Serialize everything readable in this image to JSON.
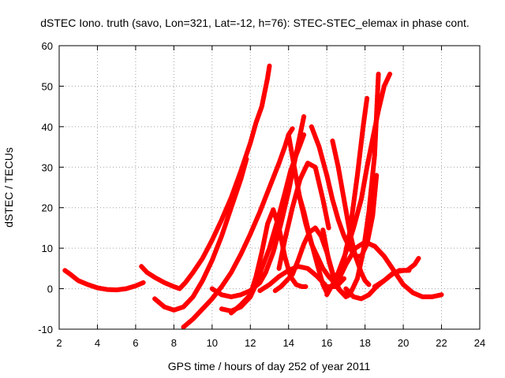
{
  "chart_data": {
    "type": "scatter",
    "title": "dSTEC Iono. truth (savo, Lon=321, Lat=-12, h=76): STEC-STEC_elemax in phase cont.",
    "xlabel": "GPS time / hours of day 252 of year 2011",
    "ylabel": "dSTEC  / TECUs",
    "xlim": [
      2,
      24
    ],
    "ylim": [
      -10,
      60
    ],
    "xticks": [
      2,
      4,
      6,
      8,
      10,
      12,
      14,
      16,
      18,
      20,
      22,
      24
    ],
    "yticks": [
      -10,
      0,
      10,
      20,
      30,
      40,
      50,
      60
    ],
    "grid": true,
    "marker": "plus",
    "color": "#ff0000",
    "series": [
      {
        "x": [
          2.3,
          2.6,
          3.0,
          3.5,
          4.0,
          4.5,
          5.0,
          5.5,
          6.0,
          6.4
        ],
        "y": [
          4.5,
          3.5,
          2.0,
          1.0,
          0.2,
          -0.2,
          -0.3,
          0.0,
          0.7,
          1.5
        ]
      },
      {
        "x": [
          6.3,
          6.6,
          7.0,
          7.5,
          8.0,
          8.3,
          8.6,
          9.0,
          9.5,
          10.0,
          10.5,
          11.0,
          11.5,
          12.0,
          12.3,
          12.6,
          12.9,
          13.0
        ],
        "y": [
          5.5,
          4.0,
          2.8,
          1.5,
          0.5,
          0.0,
          1.5,
          4.0,
          7.5,
          12.0,
          17.0,
          22.5,
          29.0,
          36.0,
          41.0,
          45.0,
          52.0,
          55.0
        ]
      },
      {
        "x": [
          7.0,
          7.5,
          8.0,
          8.5,
          9.0,
          9.5,
          10.0,
          10.5,
          11.0,
          11.5,
          11.8
        ],
        "y": [
          -2.5,
          -4.5,
          -5.3,
          -4.5,
          -2.0,
          2.0,
          7.0,
          13.0,
          20.0,
          27.0,
          32.0
        ]
      },
      {
        "x": [
          8.5,
          9.0,
          9.5,
          10.0,
          10.5,
          11.0,
          11.5,
          12.0,
          12.5,
          13.0,
          13.5,
          13.8,
          14.0,
          14.2
        ],
        "y": [
          -9.5,
          -7.5,
          -5.0,
          -2.5,
          0.5,
          4.0,
          8.5,
          13.5,
          19.0,
          25.0,
          31.0,
          35.0,
          38.0,
          39.5
        ]
      },
      {
        "x": [
          10.0,
          10.5,
          11.0,
          11.5,
          12.0,
          12.5,
          12.8,
          13.2,
          13.6,
          14.0,
          14.3,
          14.6,
          14.8
        ],
        "y": [
          0.0,
          -1.5,
          -2.0,
          -1.5,
          -0.5,
          1.5,
          4.0,
          9.0,
          16.0,
          24.0,
          31.0,
          38.0,
          42.5
        ]
      },
      {
        "x": [
          10.5,
          11.0,
          11.5,
          12.0,
          12.3,
          12.6,
          13.0,
          13.4,
          13.8,
          14.1,
          14.4,
          14.6,
          14.8
        ],
        "y": [
          -5.0,
          -5.5,
          -4.5,
          -2.0,
          1.0,
          5.0,
          10.0,
          16.5,
          23.5,
          29.0,
          33.0,
          35.5,
          38.0
        ]
      },
      {
        "x": [
          11.0,
          11.5,
          12.0,
          12.3,
          12.6,
          12.9,
          13.2,
          13.5,
          13.8,
          14.1,
          14.4,
          14.7,
          14.9
        ],
        "y": [
          -6.0,
          -4.0,
          -1.5,
          3.0,
          9.0,
          16.0,
          19.5,
          15.0,
          8.0,
          3.0,
          1.0,
          0.5,
          0.5
        ]
      },
      {
        "x": [
          12.5,
          13.0,
          13.5,
          14.0,
          14.5,
          15.0,
          15.5,
          16.0,
          16.5,
          16.9
        ],
        "y": [
          -0.5,
          1.0,
          3.0,
          4.5,
          5.5,
          5.0,
          3.0,
          0.5,
          0.5,
          2.5
        ]
      },
      {
        "x": [
          13.3,
          13.6,
          13.9,
          14.2,
          14.5,
          14.8,
          15.1,
          15.4,
          15.7,
          16.0,
          16.3,
          16.6,
          17.0,
          17.2
        ],
        "y": [
          -0.5,
          0.5,
          2.0,
          3.5,
          7.0,
          11.0,
          14.0,
          15.0,
          13.0,
          9.0,
          4.0,
          0.0,
          -2.0,
          -1.5
        ]
      },
      {
        "x": [
          14.0,
          14.3,
          14.6,
          14.9,
          15.2,
          15.5,
          15.8,
          16.1,
          16.3
        ],
        "y": [
          38.0,
          30.0,
          22.0,
          16.0,
          11.0,
          8.0,
          5.0,
          3.0,
          2.0
        ]
      },
      {
        "x": [
          14.5,
          14.8,
          15.1,
          15.5,
          15.8,
          16.0
        ],
        "y": [
          24.0,
          19.0,
          13.0,
          6.0,
          1.0,
          -1.0
        ]
      },
      {
        "x": [
          13.5,
          13.8,
          14.2,
          14.6,
          15.0,
          15.4,
          15.8,
          16.1
        ],
        "y": [
          5.0,
          12.0,
          20.0,
          27.0,
          31.0,
          30.0,
          22.0,
          15.0
        ]
      },
      {
        "x": [
          15.2,
          15.6,
          16.0,
          16.3,
          16.6,
          16.9,
          17.2,
          17.5,
          17.8,
          18.1,
          18.4,
          18.6
        ],
        "y": [
          40.0,
          35.0,
          28.0,
          22.0,
          17.0,
          13.0,
          10.0,
          8.0,
          8.0,
          11.0,
          18.0,
          28.0
        ]
      },
      {
        "x": [
          15.8,
          16.1,
          16.4,
          16.7,
          17.0,
          17.3,
          17.6,
          17.9,
          18.2,
          18.5,
          18.7
        ],
        "y": [
          14.5,
          7.0,
          2.0,
          -0.5,
          -1.5,
          -0.5,
          2.5,
          9.0,
          19.0,
          33.0,
          53.0
        ]
      },
      {
        "x": [
          16.3,
          16.6,
          16.9,
          17.2,
          17.5,
          17.8,
          18.0,
          18.2
        ],
        "y": [
          36.5,
          30.0,
          22.0,
          14.0,
          8.0,
          4.0,
          2.0,
          1.0
        ]
      },
      {
        "x": [
          16.0,
          16.3,
          16.6,
          17.0,
          17.4,
          17.8,
          18.1,
          18.4,
          18.7,
          19.0,
          19.3
        ],
        "y": [
          -1.5,
          1.0,
          4.0,
          9.0,
          15.0,
          22.0,
          30.0,
          37.0,
          44.0,
          50.0,
          53.0
        ]
      },
      {
        "x": [
          16.4,
          16.8,
          17.2,
          17.6,
          17.9,
          18.1
        ],
        "y": [
          1.0,
          5.0,
          14.0,
          28.0,
          40.0,
          47.0
        ]
      },
      {
        "x": [
          16.5,
          17.0,
          17.5,
          18.0,
          18.5,
          19.0,
          19.5,
          20.0,
          20.5,
          21.0,
          21.5,
          22.0
        ],
        "y": [
          1.0,
          6.0,
          10.0,
          11.5,
          10.5,
          8.0,
          4.5,
          1.0,
          -1.0,
          -2.0,
          -2.0,
          -1.5
        ]
      },
      {
        "x": [
          17.0,
          17.4,
          17.8,
          18.2,
          18.6,
          19.0,
          19.4,
          19.8,
          20.2,
          20.6,
          20.8
        ],
        "y": [
          0.0,
          -2.0,
          -2.5,
          -1.5,
          0.5,
          2.0,
          3.5,
          4.5,
          4.5,
          6.0,
          7.5
        ]
      },
      {
        "x": [
          18.5,
          19.0,
          19.5,
          20.0,
          20.3
        ],
        "y": [
          0.5,
          2.0,
          4.0,
          4.5,
          4.5
        ]
      }
    ]
  }
}
